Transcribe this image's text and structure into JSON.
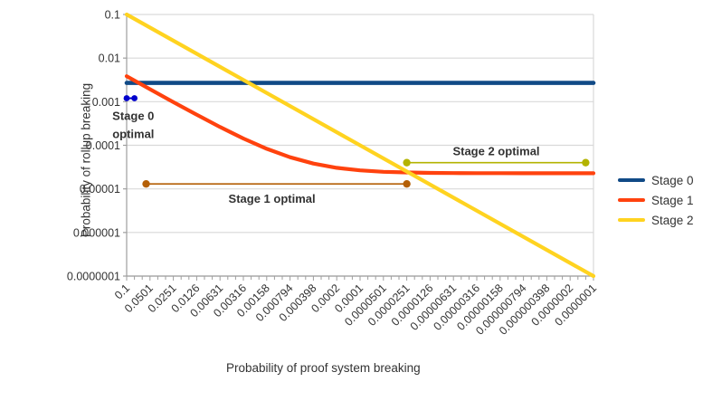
{
  "chart_data": {
    "type": "line",
    "x_scale": "log",
    "y_scale": "log",
    "xlabel": "Probability of proof system breaking",
    "ylabel": "Probability of rollup breaking",
    "xlim": [
      0.1,
      1e-07
    ],
    "ylim": [
      0.1,
      1e-07
    ],
    "grid": "horizontal-only",
    "legend_position": "right",
    "x_ticks": [
      "0.1",
      "0.0501",
      "0.0251",
      "0.0126",
      "0.00631",
      "0.00316",
      "0.00158",
      "0.000794",
      "0.000398",
      "0.0002",
      "0.0001",
      "0.0000501",
      "0.0000251",
      "0.0000126",
      "0.00000631",
      "0.00000316",
      "0.00000158",
      "0.000000794",
      "0.000000398",
      "0.0000002",
      "0.0000001"
    ],
    "y_ticks": [
      "0.1",
      "0.01",
      "0.001",
      "0.0001",
      "0.00001",
      "0.000001",
      "0.0000001"
    ],
    "series": [
      {
        "name": "Stage 0",
        "color": "#104a86",
        "points": [
          [
            0.1,
            0.0027
          ],
          [
            1e-07,
            0.0027
          ]
        ]
      },
      {
        "name": "Stage 1",
        "color": "#ff420e",
        "points": [
          [
            0.1,
            0.00383
          ],
          [
            0.0501,
            0.00193
          ],
          [
            0.0251,
            0.000979
          ],
          [
            0.0126,
            0.000503
          ],
          [
            0.00631,
            0.000263
          ],
          [
            0.00316,
            0.000143
          ],
          [
            0.00158,
            8.31e-05
          ],
          [
            0.000794,
            5.31e-05
          ],
          [
            0.000398,
            3.8e-05
          ],
          [
            0.0002,
            3.04e-05
          ],
          [
            0.0001,
            2.66e-05
          ],
          [
            5.01e-05,
            2.47e-05
          ],
          [
            2.51e-05,
            2.38e-05
          ],
          [
            1.26e-05,
            2.33e-05
          ],
          [
            6.31e-06,
            2.3e-05
          ],
          [
            3.16e-06,
            2.29e-05
          ],
          [
            1.58e-06,
            2.29e-05
          ],
          [
            7.94e-07,
            2.28e-05
          ],
          [
            3.98e-07,
            2.28e-05
          ],
          [
            2e-07,
            2.28e-05
          ],
          [
            1e-07,
            2.28e-05
          ]
        ]
      },
      {
        "name": "Stage 2",
        "color": "#ffd320",
        "points": [
          [
            0.1,
            0.1
          ],
          [
            1e-07,
            1e-07
          ]
        ]
      }
    ],
    "annotations": [
      {
        "id": "stage0-optimal",
        "label": "Stage 0 optimal",
        "label_lines": [
          "Stage 0",
          "optimal"
        ],
        "text_color": "#0000cc",
        "line_color": "#0000cc",
        "x_start": 0.1,
        "x_end": 0.0794,
        "y": 0.0012
      },
      {
        "id": "stage1-optimal",
        "label": "Stage 1 optimal",
        "label_lines": [
          "Stage 1 optimal"
        ],
        "text_color": "#d2691e",
        "line_color": "#b45f06",
        "x_start": 0.0562,
        "x_end": 2.51e-05,
        "y": 1.3e-05
      },
      {
        "id": "stage2-optimal",
        "label": "Stage 2 optimal",
        "label_lines": [
          "Stage 2 optimal"
        ],
        "text_color": "#737300",
        "line_color": "#b3b300",
        "x_start": 2.51e-05,
        "x_end": 1.26e-07,
        "y": 4e-05
      }
    ]
  },
  "legend": {
    "items": [
      {
        "label": "Stage 0"
      },
      {
        "label": "Stage 1"
      },
      {
        "label": "Stage 2"
      }
    ]
  },
  "style_colors": {
    "gridline": "#d9d9d9",
    "axis": "#9e9e9e",
    "tick_text": "#333333"
  }
}
